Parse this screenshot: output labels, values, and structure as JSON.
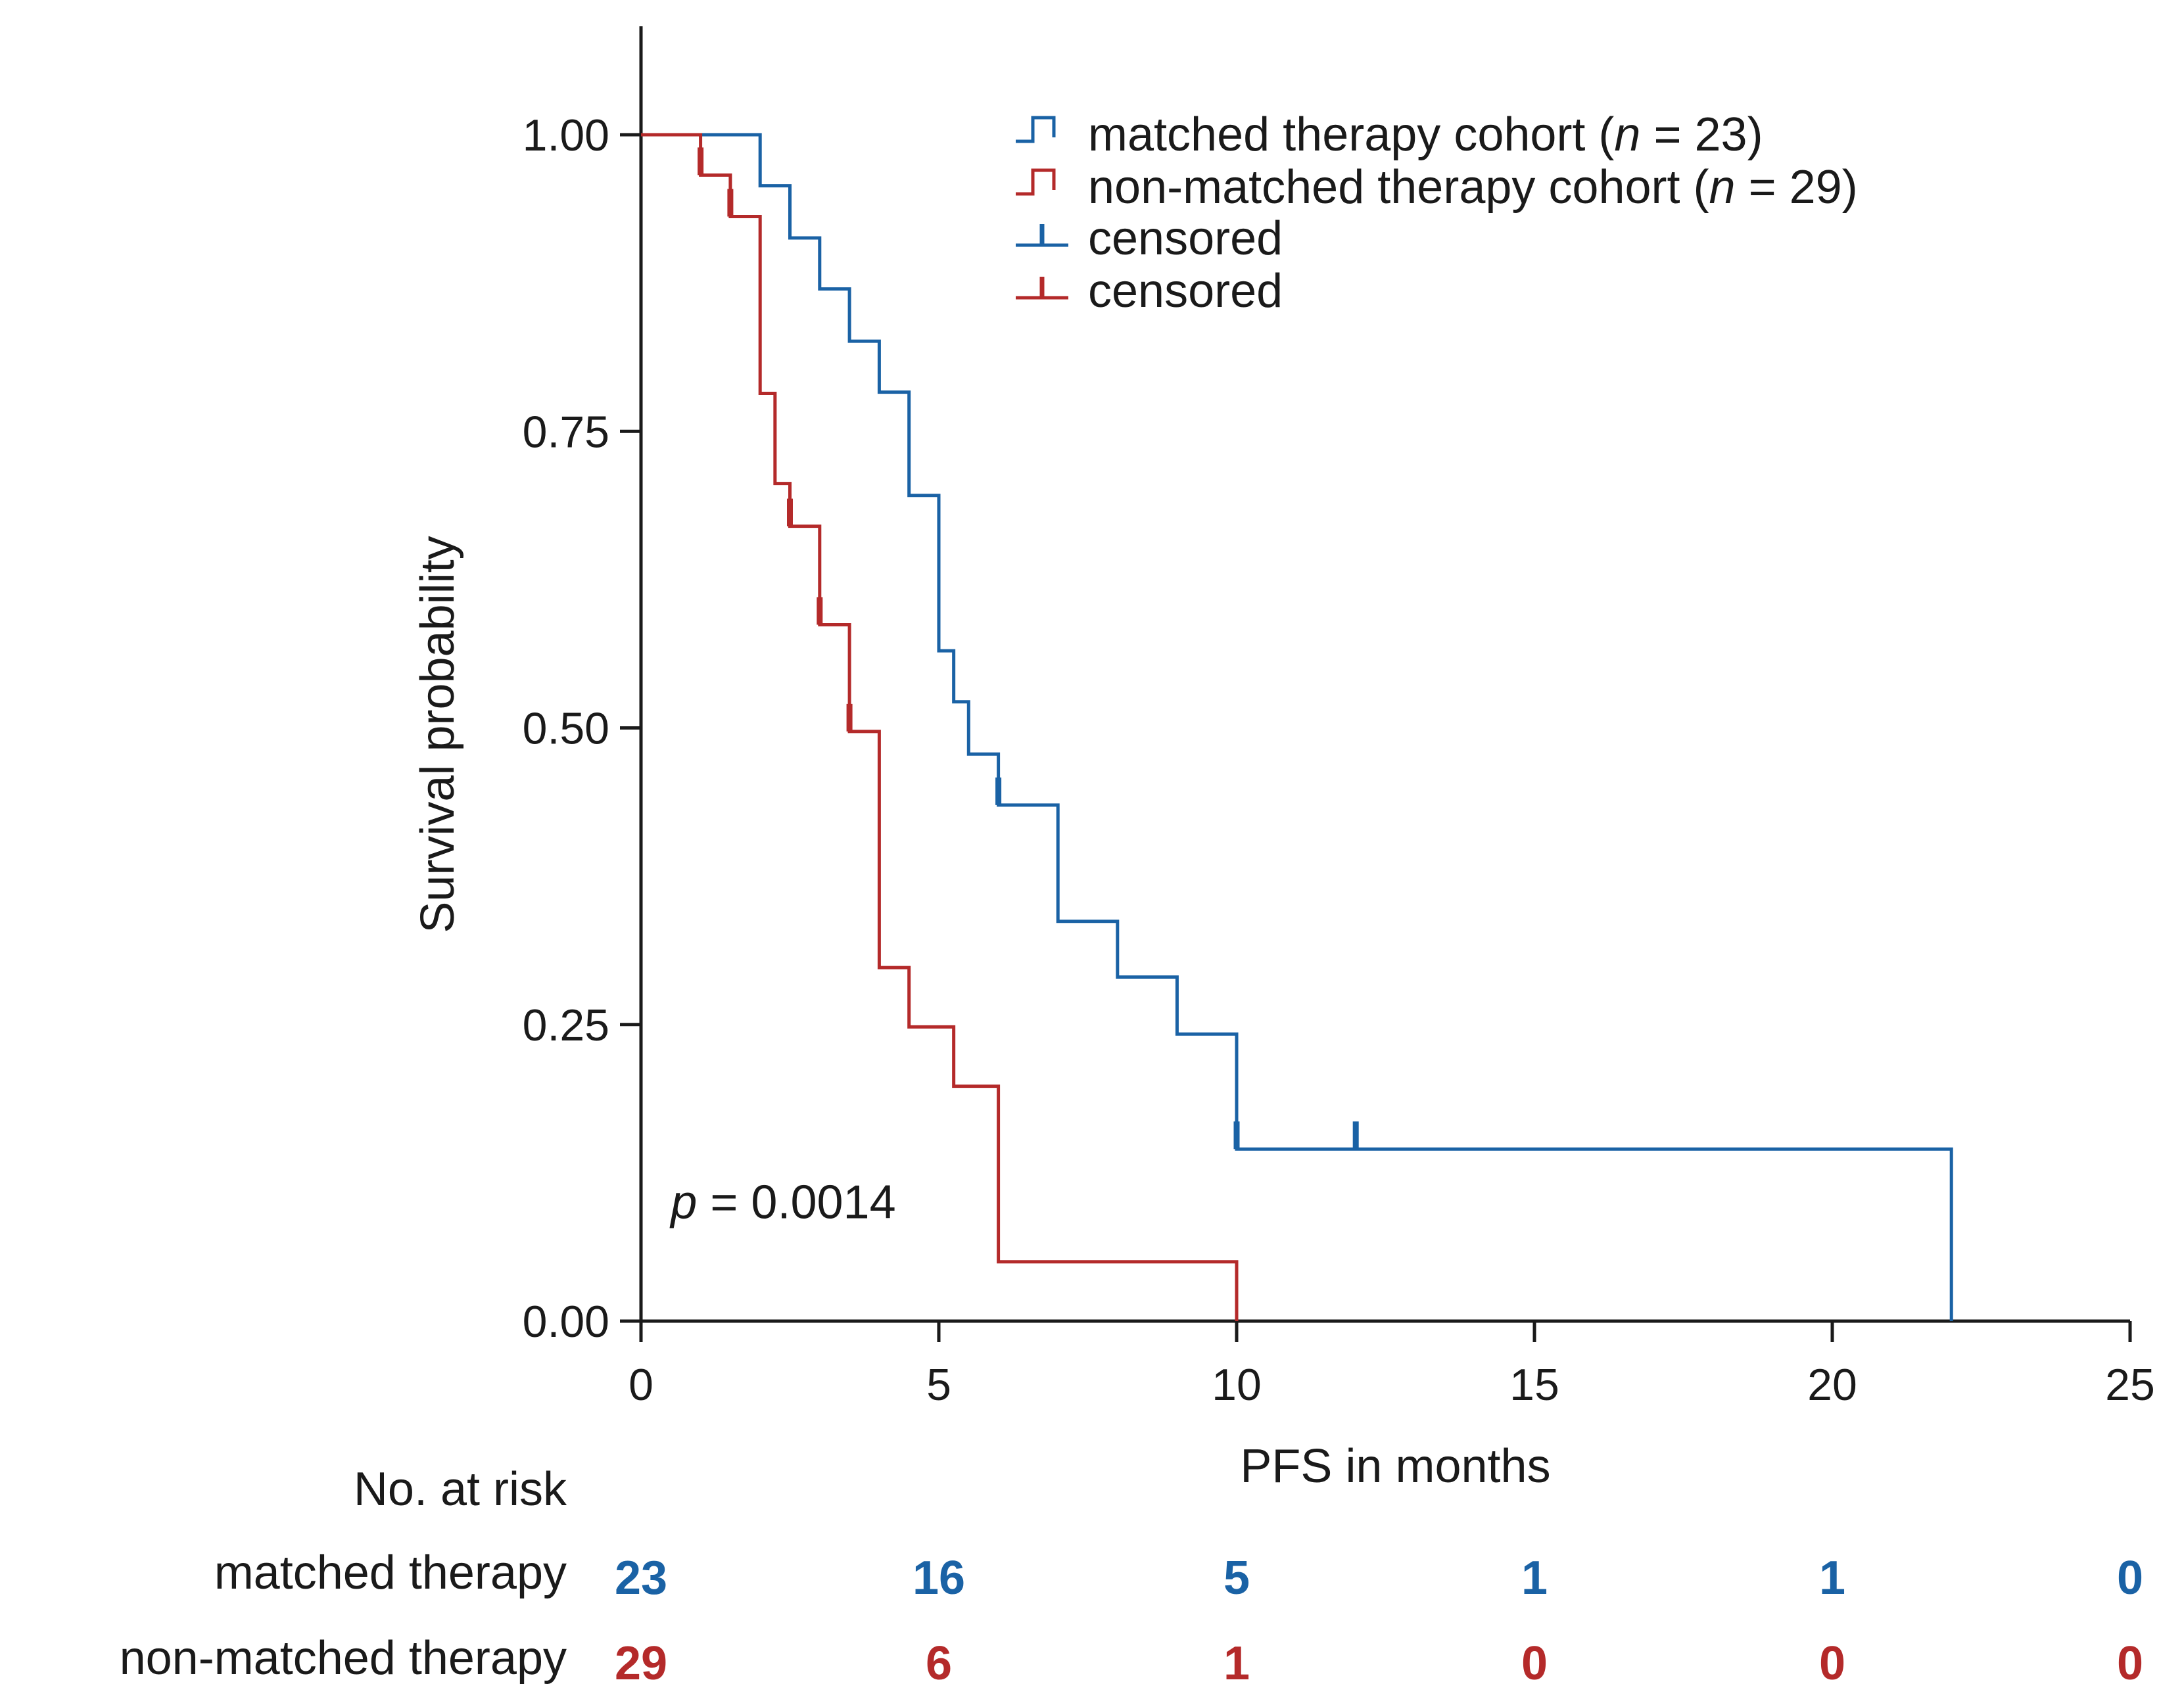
{
  "colors": {
    "matched": "#1a62a5",
    "nonmatched": "#b42a2a",
    "axis": "#1a1a1a"
  },
  "chart_data": {
    "type": "line",
    "subtype": "kaplan-meier step",
    "xlabel": "PFS in months",
    "ylabel": "Survival probability",
    "xlim": [
      0,
      25
    ],
    "ylim": [
      0,
      1
    ],
    "x_ticks": [
      0,
      5,
      10,
      15,
      20,
      25
    ],
    "x_tick_labels": [
      "0",
      "5",
      "10",
      "15",
      "20",
      "25"
    ],
    "y_ticks": [
      0,
      0.25,
      0.5,
      0.75,
      1.0
    ],
    "y_tick_labels": [
      "0.00",
      "0.25",
      "0.50",
      "0.75",
      "1.00"
    ],
    "grid": false,
    "legend_placement": "top-right",
    "annotation": {
      "italic": "p",
      "rest": " = 0.0014",
      "x": 0.5,
      "y": 0.1
    },
    "series": [
      {
        "key": "matched",
        "name": "matched therapy cohort (",
        "name_italic": "n",
        "name_rest": " = 23)",
        "steps": [
          [
            0,
            1.0
          ],
          [
            2.0,
            0.957
          ],
          [
            2.5,
            0.913
          ],
          [
            3.0,
            0.87
          ],
          [
            3.5,
            0.826
          ],
          [
            4.0,
            0.783
          ],
          [
            4.5,
            0.696
          ],
          [
            5.0,
            0.565
          ],
          [
            5.25,
            0.522
          ],
          [
            5.5,
            0.478
          ],
          [
            6.0,
            0.435
          ],
          [
            7.0,
            0.337
          ],
          [
            8.0,
            0.29
          ],
          [
            9.0,
            0.242
          ],
          [
            10.0,
            0.145
          ],
          [
            22.0,
            0.0
          ]
        ],
        "end": 22.0,
        "censored": [
          [
            6.0,
            0.435
          ],
          [
            10.0,
            0.145
          ],
          [
            12.0,
            0.145
          ]
        ]
      },
      {
        "key": "nonmatched",
        "name": "non-matched therapy cohort (",
        "name_italic": "n",
        "name_rest": " = 29)",
        "steps": [
          [
            0,
            1.0
          ],
          [
            1.0,
            0.966
          ],
          [
            1.5,
            0.931
          ],
          [
            2.0,
            0.782
          ],
          [
            2.25,
            0.706
          ],
          [
            2.5,
            0.67
          ],
          [
            3.0,
            0.587
          ],
          [
            3.5,
            0.497
          ],
          [
            4.0,
            0.298
          ],
          [
            4.5,
            0.248
          ],
          [
            5.25,
            0.198
          ],
          [
            6.0,
            0.05
          ],
          [
            10.0,
            0.0
          ]
        ],
        "end": 10.0,
        "censored": [
          [
            1.0,
            0.966
          ],
          [
            1.5,
            0.931
          ],
          [
            2.5,
            0.67
          ],
          [
            3.0,
            0.587
          ],
          [
            3.5,
            0.497
          ]
        ]
      }
    ],
    "censored_legend": [
      "censored",
      "censored"
    ],
    "risk_table": {
      "title": "No. at risk",
      "times": [
        0,
        5,
        10,
        15,
        20,
        25
      ],
      "rows": [
        {
          "key": "matched",
          "label": "matched therapy",
          "values": [
            23,
            16,
            5,
            1,
            1,
            0
          ]
        },
        {
          "key": "nonmatched",
          "label": "non-matched therapy",
          "values": [
            29,
            6,
            1,
            0,
            0,
            0
          ]
        }
      ]
    }
  }
}
